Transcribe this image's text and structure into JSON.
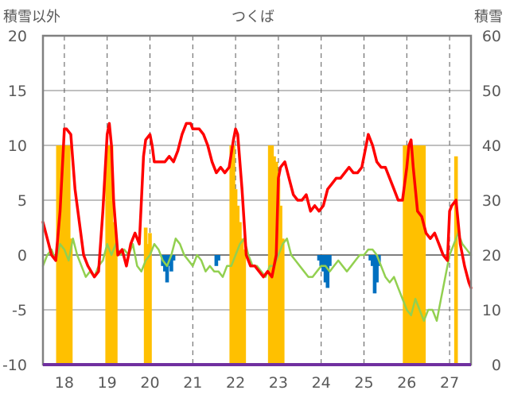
{
  "chart_data": {
    "type": "line",
    "title": "つくば",
    "left_axis_label": "積雪以外",
    "right_axis_label": "積雪",
    "x_ticks": [
      18,
      19,
      20,
      21,
      22,
      23,
      24,
      25,
      26,
      27
    ],
    "xlim": [
      17.5,
      27.5
    ],
    "ylim_left": [
      -10,
      20
    ],
    "ylim_right": [
      0,
      60
    ],
    "y_ticks_left": [
      20,
      15,
      10,
      5,
      0,
      -5,
      -10
    ],
    "y_ticks_right": [
      60,
      50,
      40,
      30,
      20,
      10,
      0
    ],
    "colors": {
      "red": "#ff0000",
      "green": "#92d050",
      "yellow": "#ffc000",
      "blue": "#0070c0",
      "purple": "#7030a0",
      "frame": "#808080"
    },
    "series": [
      {
        "kind": "line",
        "axis": "left",
        "color": "#ff0000",
        "x": [
          17.5,
          17.6,
          17.7,
          17.8,
          17.9,
          18.0,
          18.05,
          18.15,
          18.25,
          18.35,
          18.45,
          18.55,
          18.7,
          18.8,
          18.9,
          19.0,
          19.05,
          19.1,
          19.15,
          19.25,
          19.35,
          19.45,
          19.55,
          19.65,
          19.75,
          19.85,
          19.9,
          20.0,
          20.05,
          20.1,
          20.15,
          20.25,
          20.35,
          20.45,
          20.55,
          20.65,
          20.75,
          20.85,
          20.95,
          21.0,
          21.05,
          21.15,
          21.25,
          21.35,
          21.45,
          21.55,
          21.65,
          21.75,
          21.85,
          21.95,
          22.0,
          22.05,
          22.15,
          22.25,
          22.35,
          22.45,
          22.55,
          22.65,
          22.75,
          22.85,
          22.95,
          23.0,
          23.05,
          23.15,
          23.25,
          23.35,
          23.45,
          23.55,
          23.65,
          23.75,
          23.85,
          23.95,
          24.05,
          24.15,
          24.25,
          24.35,
          24.45,
          24.55,
          24.65,
          24.75,
          24.85,
          24.95,
          25.0,
          25.05,
          25.1,
          25.2,
          25.3,
          25.4,
          25.5,
          25.6,
          25.7,
          25.8,
          25.9,
          26.0,
          26.05,
          26.1,
          26.15,
          26.25,
          26.35,
          26.45,
          26.55,
          26.65,
          26.75,
          26.85,
          26.95,
          27.0,
          27.05,
          27.15,
          27.25,
          27.35,
          27.45,
          27.5
        ],
        "values": [
          3,
          1.5,
          0,
          -0.5,
          4,
          11.5,
          11.5,
          11,
          6,
          3,
          0,
          -1,
          -2,
          -1.5,
          4,
          11,
          12,
          10,
          5,
          0,
          0.5,
          -1,
          1,
          2,
          1,
          9,
          10.5,
          11,
          10,
          8.5,
          8.5,
          8.5,
          8.5,
          9,
          8.5,
          9.5,
          11,
          12,
          12,
          11.5,
          11.5,
          11.5,
          11,
          10,
          8.5,
          7.5,
          8,
          7.5,
          8,
          10.5,
          11.5,
          11,
          6,
          0,
          -1,
          -1,
          -1.5,
          -2,
          -1.5,
          -2,
          0,
          7,
          8,
          8.5,
          7,
          5.5,
          5,
          5,
          5.5,
          4,
          4.5,
          4,
          4.5,
          6,
          6.5,
          7,
          7,
          7.5,
          8,
          7.5,
          7.5,
          8,
          9,
          10,
          11,
          10,
          8.5,
          8,
          8,
          7,
          6,
          5,
          5,
          8,
          10,
          10.5,
          8,
          4,
          3.5,
          2,
          1.5,
          2,
          1,
          0,
          -0.5,
          4,
          4.5,
          5,
          1,
          -1,
          -2.5,
          -3
        ]
      },
      {
        "kind": "line",
        "axis": "left",
        "color": "#92d050",
        "x": [
          17.5,
          17.6,
          17.7,
          17.8,
          17.9,
          18.0,
          18.1,
          18.2,
          18.3,
          18.4,
          18.5,
          18.6,
          18.7,
          18.8,
          18.9,
          19.0,
          19.1,
          19.2,
          19.3,
          19.4,
          19.5,
          19.6,
          19.7,
          19.8,
          19.9,
          20.0,
          20.1,
          20.2,
          20.3,
          20.4,
          20.5,
          20.6,
          20.7,
          20.8,
          20.9,
          21.0,
          21.1,
          21.2,
          21.3,
          21.4,
          21.5,
          21.6,
          21.7,
          21.8,
          21.9,
          22.0,
          22.1,
          22.2,
          22.3,
          22.4,
          22.5,
          22.6,
          22.7,
          22.8,
          22.9,
          23.0,
          23.1,
          23.2,
          23.3,
          23.4,
          23.5,
          23.6,
          23.7,
          23.8,
          23.9,
          24.0,
          24.1,
          24.2,
          24.3,
          24.4,
          24.5,
          24.6,
          24.7,
          24.8,
          24.9,
          25.0,
          25.1,
          25.2,
          25.3,
          25.4,
          25.5,
          25.6,
          25.7,
          25.8,
          25.9,
          26.0,
          26.1,
          26.2,
          26.3,
          26.4,
          26.5,
          26.6,
          26.7,
          26.8,
          26.9,
          27.0,
          27.1,
          27.2,
          27.3,
          27.4,
          27.5
        ],
        "values": [
          -1,
          0,
          0.5,
          -0.5,
          1,
          0.5,
          -0.5,
          1.5,
          0,
          -1,
          -2,
          -1.5,
          -2,
          -1,
          -0.5,
          1,
          0,
          1,
          0,
          0.5,
          0,
          1,
          -1,
          -1.5,
          -0.5,
          0,
          1,
          0.5,
          -0.5,
          -1,
          0,
          1.5,
          1,
          0,
          -0.5,
          -1,
          0,
          -0.5,
          -1.5,
          -1,
          -1.5,
          -1.5,
          -2,
          -1,
          -1,
          0,
          1,
          1.5,
          0,
          -1,
          -1,
          -1.5,
          -2,
          -1,
          -1,
          0,
          1,
          1.5,
          0,
          -0.5,
          -1,
          -1.5,
          -2,
          -2,
          -1.5,
          -1,
          -1,
          -1.5,
          -1,
          -0.5,
          -1,
          -1.5,
          -1,
          -0.5,
          0,
          0,
          0.5,
          0.5,
          0,
          -1,
          -2,
          -2.5,
          -2,
          -3,
          -4,
          -5,
          -5.5,
          -4,
          -5,
          -6,
          -5,
          -5,
          -6,
          -4,
          -2,
          0,
          1,
          2,
          1,
          0.5,
          0
        ]
      },
      {
        "kind": "bar",
        "axis": "right",
        "color": "#ffc000",
        "x": [
          17.85,
          17.9,
          17.95,
          18.0,
          18.05,
          18.1,
          18.15,
          19.0,
          19.05,
          19.1,
          19.15,
          19.2,
          19.9,
          19.95,
          20.0,
          21.9,
          21.95,
          22.0,
          22.05,
          22.1,
          22.15,
          22.2,
          22.8,
          22.85,
          22.9,
          22.95,
          23.0,
          23.05,
          23.1,
          25.95,
          26.0,
          26.05,
          26.1,
          26.15,
          26.2,
          26.25,
          26.3,
          26.35,
          26.4,
          27.15
        ],
        "values": [
          40,
          40,
          40,
          40,
          40,
          40,
          23,
          40,
          40,
          40,
          26,
          23,
          25,
          22,
          24,
          40,
          40,
          32,
          29,
          26,
          23,
          21,
          40,
          40,
          38,
          37,
          34,
          29,
          23,
          40,
          40,
          40,
          40,
          40,
          40,
          40,
          40,
          40,
          40,
          38
        ]
      },
      {
        "kind": "bar",
        "axis": "left",
        "color": "#0070c0",
        "x": [
          20.3,
          20.35,
          20.4,
          20.45,
          20.5,
          20.55,
          21.55,
          21.6,
          23.95,
          24.0,
          24.05,
          24.1,
          24.15,
          24.2,
          25.15,
          25.2,
          25.25,
          25.3,
          25.35
        ],
        "values": [
          -1,
          -1.5,
          -2.5,
          -1,
          -1.5,
          -0.5,
          -1,
          -0.5,
          -0.5,
          -1,
          -1.5,
          -2.5,
          -3,
          -1,
          -0.5,
          -1,
          -3.5,
          -2.5,
          -1
        ]
      }
    ]
  }
}
